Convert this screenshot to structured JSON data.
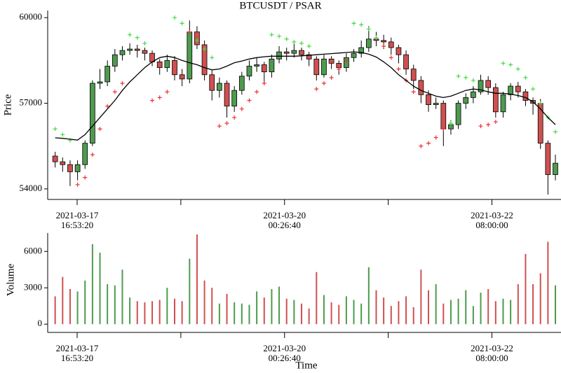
{
  "chart_data": {
    "type": "candlestick",
    "title": "BTCUSDT / PSAR",
    "y_label": "Price",
    "volume_label": "Volume",
    "x_label": "Time",
    "x": [
      "2021-03-17 11:00:00",
      "2021-03-17 13:00:00",
      "2021-03-17 15:00:00",
      "2021-03-17 17:00:00",
      "2021-03-17 19:00:00",
      "2021-03-17 21:00:00",
      "2021-03-17 23:00:00",
      "2021-03-18 01:00:00",
      "2021-03-18 03:00:00",
      "2021-03-18 05:00:00",
      "2021-03-18 07:00:00",
      "2021-03-18 09:00:00",
      "2021-03-18 11:00:00",
      "2021-03-18 13:00:00",
      "2021-03-18 15:00:00",
      "2021-03-18 17:00:00",
      "2021-03-18 19:00:00",
      "2021-03-18 21:00:00",
      "2021-03-18 23:00:00",
      "2021-03-19 01:00:00",
      "2021-03-19 03:00:00",
      "2021-03-19 05:00:00",
      "2021-03-19 07:00:00",
      "2021-03-19 09:00:00",
      "2021-03-19 11:00:00",
      "2021-03-19 13:00:00",
      "2021-03-19 15:00:00",
      "2021-03-19 17:00:00",
      "2021-03-19 19:00:00",
      "2021-03-19 21:00:00",
      "2021-03-19 23:00:00",
      "2021-03-20 01:00:00",
      "2021-03-20 03:00:00",
      "2021-03-20 05:00:00",
      "2021-03-20 07:00:00",
      "2021-03-20 09:00:00",
      "2021-03-20 11:00:00",
      "2021-03-20 13:00:00",
      "2021-03-20 15:00:00",
      "2021-03-20 17:00:00",
      "2021-03-20 19:00:00",
      "2021-03-20 21:00:00",
      "2021-03-20 23:00:00",
      "2021-03-21 01:00:00",
      "2021-03-21 03:00:00",
      "2021-03-21 05:00:00",
      "2021-03-21 07:00:00",
      "2021-03-21 09:00:00",
      "2021-03-21 11:00:00",
      "2021-03-21 13:00:00",
      "2021-03-21 15:00:00",
      "2021-03-21 17:00:00",
      "2021-03-21 19:00:00",
      "2021-03-21 21:00:00",
      "2021-03-21 23:00:00",
      "2021-03-22 01:00:00",
      "2021-03-22 03:00:00",
      "2021-03-22 05:00:00",
      "2021-03-22 07:00:00",
      "2021-03-22 09:00:00",
      "2021-03-22 11:00:00",
      "2021-03-22 13:00:00",
      "2021-03-22 15:00:00",
      "2021-03-22 17:00:00",
      "2021-03-22 19:00:00",
      "2021-03-22 21:00:00",
      "2021-03-22 23:00:00",
      "2021-03-23 01:00:00"
    ],
    "open": [
      55150,
      54950,
      54850,
      54600,
      54850,
      55600,
      57700,
      57750,
      58300,
      58700,
      58850,
      58900,
      58850,
      58750,
      58450,
      58250,
      58500,
      58000,
      57850,
      59500,
      59050,
      58000,
      57450,
      57700,
      56900,
      57450,
      57950,
      58300,
      58350,
      58100,
      58550,
      58800,
      58750,
      58850,
      58700,
      58550,
      58000,
      58550,
      58400,
      58250,
      58600,
      58750,
      58950,
      59250,
      59200,
      59150,
      58950,
      58700,
      58200,
      57800,
      57300,
      56950,
      57000,
      56100,
      56250,
      57000,
      57200,
      57400,
      57800,
      57550,
      56700,
      57300,
      57600,
      57400,
      57100,
      57000,
      55600,
      54500
    ],
    "high": [
      55300,
      55100,
      55000,
      55000,
      55700,
      57800,
      58200,
      58500,
      58900,
      59000,
      59100,
      59050,
      58950,
      58850,
      58550,
      58700,
      58650,
      58200,
      59900,
      59700,
      59200,
      58150,
      57900,
      57800,
      57600,
      58100,
      58500,
      58600,
      58450,
      58700,
      59000,
      58950,
      59100,
      58950,
      58800,
      58650,
      58700,
      58650,
      58500,
      58750,
      58900,
      59200,
      59700,
      59500,
      59400,
      59300,
      59050,
      58850,
      58350,
      57950,
      57450,
      57200,
      57100,
      56400,
      57100,
      57350,
      57600,
      58000,
      57950,
      57700,
      57400,
      57700,
      57750,
      57500,
      57200,
      57150,
      55700,
      55200
    ],
    "low": [
      54750,
      54600,
      54100,
      54300,
      54700,
      55500,
      57500,
      57600,
      58100,
      58500,
      58700,
      58600,
      58500,
      58300,
      58000,
      58100,
      57800,
      57600,
      57700,
      58900,
      57800,
      57100,
      57200,
      56500,
      56700,
      57300,
      57800,
      58100,
      57700,
      57900,
      58400,
      58500,
      58600,
      58500,
      58300,
      57800,
      57900,
      58200,
      58000,
      58100,
      58450,
      58600,
      58800,
      59000,
      58900,
      58700,
      58400,
      58000,
      57500,
      57000,
      56700,
      56800,
      55500,
      55900,
      56100,
      56800,
      57000,
      57300,
      57300,
      56500,
      56500,
      57100,
      57200,
      56900,
      56600,
      55400,
      53800,
      54300
    ],
    "close": [
      54950,
      54850,
      54600,
      54850,
      55600,
      57700,
      57750,
      58300,
      58700,
      58850,
      58900,
      58850,
      58750,
      58450,
      58250,
      58500,
      58000,
      57850,
      59500,
      59050,
      58000,
      57450,
      57700,
      56900,
      57450,
      57950,
      58300,
      58350,
      58100,
      58550,
      58800,
      58750,
      58850,
      58700,
      58550,
      58000,
      58550,
      58400,
      58250,
      58600,
      58750,
      58950,
      59250,
      59200,
      59150,
      58950,
      58700,
      58200,
      57800,
      57300,
      56950,
      57000,
      56100,
      56250,
      57000,
      57200,
      57400,
      57800,
      57550,
      56700,
      57300,
      57600,
      57400,
      57100,
      57000,
      55600,
      54500,
      54900
    ],
    "ma": [
      55790,
      55770,
      55740,
      55710,
      55900,
      56200,
      56500,
      56800,
      57100,
      57450,
      57750,
      58000,
      58250,
      58450,
      58600,
      58650,
      58600,
      58500,
      58420,
      58350,
      58250,
      58170,
      58200,
      58300,
      58420,
      58480,
      58550,
      58600,
      58630,
      58650,
      58650,
      58650,
      58650,
      58660,
      58680,
      58700,
      58720,
      58740,
      58760,
      58780,
      58800,
      58780,
      58720,
      58620,
      58450,
      58250,
      58000,
      57800,
      57600,
      57450,
      57350,
      57250,
      57200,
      57250,
      57350,
      57450,
      57500,
      57470,
      57400,
      57350,
      57350,
      57320,
      57270,
      57200,
      57050,
      56800,
      56500,
      56250
    ],
    "psar": [
      56100,
      55900,
      55700,
      54150,
      54400,
      55200,
      56100,
      56900,
      57400,
      57700,
      59400,
      59300,
      59100,
      57100,
      57200,
      57400,
      60000,
      59800,
      59500,
      59200,
      58900,
      58600,
      56200,
      56300,
      56500,
      56800,
      57100,
      57400,
      57700,
      59400,
      59350,
      59250,
      59150,
      59100,
      59000,
      57500,
      57700,
      57900,
      58200,
      58500,
      59800,
      59750,
      59600,
      59300,
      59000,
      58600,
      58200,
      57800,
      57400,
      55500,
      55600,
      55800,
      56100,
      56300,
      57950,
      57900,
      57800,
      56200,
      56250,
      56350,
      58400,
      58350,
      58200,
      57900,
      57500,
      57000,
      56500,
      56000
    ],
    "volume": [
      2300,
      3900,
      2900,
      2700,
      3600,
      6600,
      5900,
      3300,
      3200,
      4500,
      2200,
      1900,
      1800,
      1900,
      2000,
      3000,
      2100,
      1900,
      5400,
      7400,
      3600,
      3000,
      1700,
      2500,
      1800,
      1700,
      1600,
      2700,
      2200,
      2900,
      3100,
      2100,
      2000,
      1700,
      1300,
      4300,
      2400,
      1800,
      1600,
      2300,
      2000,
      1700,
      4700,
      2800,
      2200,
      1500,
      1900,
      2300,
      1400,
      4500,
      2800,
      3300,
      1700,
      2000,
      2100,
      2800,
      1500,
      2600,
      2900,
      1900,
      2100,
      2000,
      3300,
      5800,
      3300,
      4200,
      6800,
      3200
    ],
    "up_color": "#4e9a4e",
    "down_color": "#d05050",
    "ma_color": "#000000",
    "psar_above_color": "#44dd44",
    "psar_below_color": "#ee3333",
    "xlim": [
      "2021-03-17 09:00:00",
      "2021-03-23 02:30:00"
    ],
    "xticks": [
      {
        "value": "2021-03-17 16:53:20",
        "label": [
          "2021-03-17",
          "16:53:20"
        ]
      },
      {
        "value": "2021-03-18 20:40:00",
        "label": null
      },
      {
        "value": "2021-03-20 00:26:40",
        "label": [
          "2021-03-20",
          "00:26:40"
        ]
      },
      {
        "value": "2021-03-21 04:13:20",
        "label": null
      },
      {
        "value": "2021-03-22 08:00:00",
        "label": [
          "2021-03-22",
          "08:00:00"
        ]
      }
    ],
    "ylim": [
      53630,
      60250
    ],
    "yticks": [
      54000,
      57000,
      60000
    ],
    "volume_ylim": [
      -680,
      7520
    ],
    "volume_yticks": [
      0,
      3000,
      6000
    ]
  }
}
